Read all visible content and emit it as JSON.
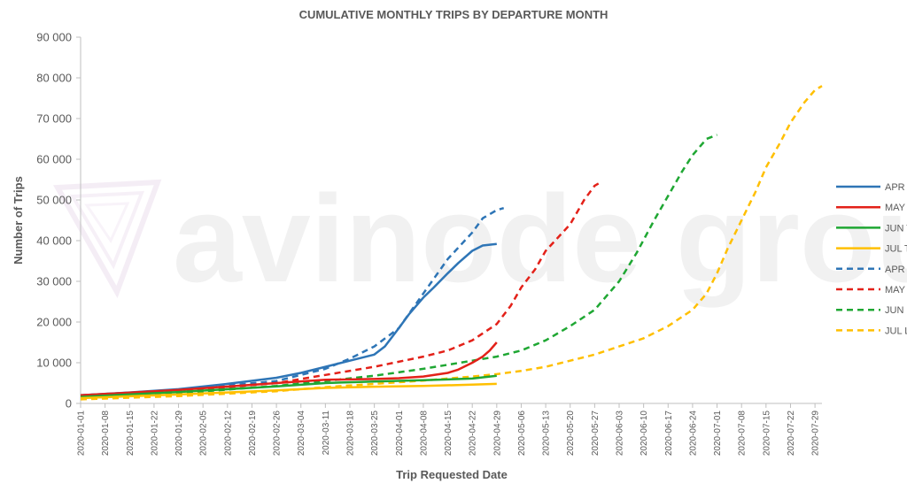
{
  "chart_data": {
    "type": "line",
    "title": "CUMULATIVE MONTHLY TRIPS BY DEPARTURE MONTH",
    "xlabel": "Trip Requested Date",
    "ylabel": "Number of Trips",
    "ylim": [
      0,
      90000
    ],
    "yticks": [
      "0",
      "10 000",
      "20 000",
      "30 000",
      "40 000",
      "50 000",
      "60 000",
      "70 000",
      "80 000",
      "90 000"
    ],
    "xlim": [
      "2020-01-01",
      "2020-07-31"
    ],
    "xticks": [
      "2020-01-01",
      "2020-01-08",
      "2020-01-15",
      "2020-01-22",
      "2020-01-29",
      "2020-02-05",
      "2020-02-12",
      "2020-02-19",
      "2020-02-26",
      "2020-03-04",
      "2020-03-11",
      "2020-03-18",
      "2020-03-25",
      "2020-04-01",
      "2020-04-08",
      "2020-04-15",
      "2020-04-22",
      "2020-04-29",
      "2020-05-06",
      "2020-05-13",
      "2020-05-20",
      "2020-05-27",
      "2020-06-03",
      "2020-06-10",
      "2020-06-17",
      "2020-06-24",
      "2020-07-01",
      "2020-07-08",
      "2020-07-15",
      "2020-07-22",
      "2020-07-29"
    ],
    "grid": false,
    "legend_position": "right",
    "watermark": "avinode group",
    "series": [
      {
        "name": "APR TY",
        "color": "#2e75b6",
        "dash": "solid",
        "x": [
          "2020-01-01",
          "2020-01-15",
          "2020-01-29",
          "2020-02-12",
          "2020-02-26",
          "2020-03-04",
          "2020-03-11",
          "2020-03-18",
          "2020-03-25",
          "2020-03-28",
          "2020-04-01",
          "2020-04-04",
          "2020-04-08",
          "2020-04-11",
          "2020-04-15",
          "2020-04-18",
          "2020-04-22",
          "2020-04-25",
          "2020-04-29"
        ],
        "y": [
          2000,
          2700,
          3500,
          4800,
          6300,
          7500,
          9000,
          10500,
          12000,
          14000,
          18500,
          22000,
          26000,
          28500,
          32000,
          34500,
          37500,
          38800,
          39200
        ]
      },
      {
        "name": "MAY TY",
        "color": "#e32119",
        "dash": "solid",
        "x": [
          "2020-01-01",
          "2020-01-29",
          "2020-02-26",
          "2020-03-11",
          "2020-03-25",
          "2020-04-01",
          "2020-04-08",
          "2020-04-15",
          "2020-04-18",
          "2020-04-22",
          "2020-04-25",
          "2020-04-27",
          "2020-04-29"
        ],
        "y": [
          2000,
          3300,
          5000,
          5800,
          6000,
          6200,
          6600,
          7500,
          8300,
          10000,
          11500,
          13000,
          15000
        ]
      },
      {
        "name": "JUN TY",
        "color": "#1fa733",
        "dash": "solid",
        "x": [
          "2020-01-01",
          "2020-01-29",
          "2020-02-26",
          "2020-03-11",
          "2020-03-25",
          "2020-04-08",
          "2020-04-22",
          "2020-04-29"
        ],
        "y": [
          1600,
          2800,
          4200,
          5000,
          5400,
          5700,
          6100,
          6800
        ]
      },
      {
        "name": "JUL TY",
        "color": "#ffbf00",
        "dash": "solid",
        "x": [
          "2020-01-01",
          "2020-01-29",
          "2020-02-26",
          "2020-03-11",
          "2020-03-25",
          "2020-04-08",
          "2020-04-22",
          "2020-04-29"
        ],
        "y": [
          1300,
          2200,
          3200,
          3800,
          4100,
          4300,
          4600,
          4800
        ]
      },
      {
        "name": "APR LY",
        "color": "#2e75b6",
        "dash": "dashed",
        "x": [
          "2020-01-01",
          "2020-01-29",
          "2020-02-26",
          "2020-03-11",
          "2020-03-18",
          "2020-03-25",
          "2020-04-01",
          "2020-04-08",
          "2020-04-15",
          "2020-04-22",
          "2020-04-25",
          "2020-04-29",
          "2020-05-01"
        ],
        "y": [
          2000,
          3300,
          5500,
          8500,
          11000,
          14000,
          18500,
          27000,
          35500,
          42000,
          45500,
          47500,
          48000
        ]
      },
      {
        "name": "MAY LY",
        "color": "#e32119",
        "dash": "dashed",
        "x": [
          "2020-01-01",
          "2020-01-29",
          "2020-02-26",
          "2020-03-11",
          "2020-03-25",
          "2020-04-08",
          "2020-04-15",
          "2020-04-22",
          "2020-04-29",
          "2020-05-03",
          "2020-05-06",
          "2020-05-10",
          "2020-05-13",
          "2020-05-20",
          "2020-05-24",
          "2020-05-27",
          "2020-05-29"
        ],
        "y": [
          1800,
          3000,
          5000,
          7000,
          9000,
          11500,
          13000,
          15500,
          19500,
          24000,
          28500,
          33000,
          37500,
          44000,
          50000,
          53500,
          54500
        ]
      },
      {
        "name": "JUN LY",
        "color": "#1fa733",
        "dash": "dashed",
        "x": [
          "2020-01-01",
          "2020-01-29",
          "2020-02-26",
          "2020-03-11",
          "2020-03-25",
          "2020-04-08",
          "2020-04-22",
          "2020-04-29",
          "2020-05-06",
          "2020-05-13",
          "2020-05-20",
          "2020-05-27",
          "2020-06-03",
          "2020-06-08",
          "2020-06-13",
          "2020-06-17",
          "2020-06-21",
          "2020-06-24",
          "2020-06-28",
          "2020-07-01"
        ],
        "y": [
          1400,
          2500,
          4300,
          5500,
          6800,
          8500,
          10500,
          11500,
          13000,
          15500,
          19000,
          23000,
          30000,
          37000,
          45000,
          51000,
          57000,
          61000,
          65000,
          66000
        ]
      },
      {
        "name": "JUL LY",
        "color": "#ffbf00",
        "dash": "dashed",
        "x": [
          "2020-01-01",
          "2020-01-29",
          "2020-02-26",
          "2020-03-11",
          "2020-03-25",
          "2020-04-08",
          "2020-04-22",
          "2020-04-29",
          "2020-05-06",
          "2020-05-13",
          "2020-05-20",
          "2020-05-27",
          "2020-06-03",
          "2020-06-10",
          "2020-06-17",
          "2020-06-24",
          "2020-06-28",
          "2020-07-01",
          "2020-07-04",
          "2020-07-08",
          "2020-07-12",
          "2020-07-15",
          "2020-07-19",
          "2020-07-22",
          "2020-07-26",
          "2020-07-29",
          "2020-07-31"
        ],
        "y": [
          1000,
          1800,
          3000,
          4000,
          4800,
          5600,
          6600,
          7200,
          8000,
          9000,
          10500,
          12000,
          14000,
          16000,
          19000,
          23000,
          27000,
          32000,
          38000,
          45000,
          52000,
          58000,
          64000,
          69000,
          74000,
          77000,
          78000
        ]
      }
    ]
  }
}
